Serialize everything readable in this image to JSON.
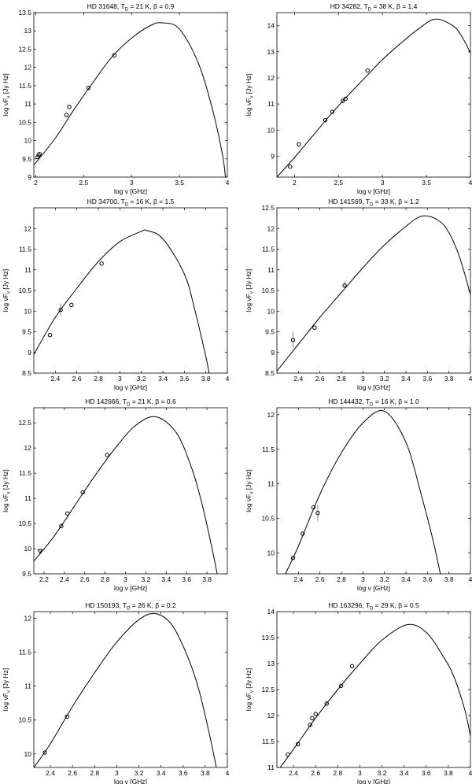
{
  "figure": {
    "chart_data": [
      {
        "type": "line",
        "title": "HD 31648, T_D = 21 K, β = 0.9",
        "title_parts": {
          "pre": "HD 31648, T",
          "sub": "D",
          "post": " = 21 K, β = 0.9"
        },
        "xlabel": "log ν [GHz]",
        "ylabel": {
          "pre": "log νF",
          "sub": "ν",
          "post": " [Jy Hz]"
        },
        "xlim": [
          1.98,
          4.0
        ],
        "ylim": [
          9.0,
          13.5
        ],
        "xticks": [
          2,
          2.5,
          3,
          3.5,
          4
        ],
        "yticks": [
          9,
          9.5,
          10,
          10.5,
          11,
          11.5,
          12,
          12.5,
          13,
          13.5
        ],
        "model": {
          "T_D": 21,
          "beta": 0.9,
          "peak_x": 3.32,
          "peak_y": 13.22
        },
        "series": [
          {
            "kind": "model",
            "x": [
              1.98,
              2.2,
              2.4,
              2.6,
              2.8,
              3.0,
              3.2,
              3.32,
              3.5,
              3.7,
              3.85,
              3.95,
              3.98
            ],
            "y": [
              9.33,
              10.05,
              10.85,
              11.6,
              12.3,
              12.8,
              13.15,
              13.22,
              13.05,
              12.1,
              10.8,
              9.6,
              9.0
            ]
          },
          {
            "kind": "data",
            "x": [
              2.02,
              2.03,
              2.04,
              2.32,
              2.35,
              2.55,
              2.82
            ],
            "y": [
              9.55,
              9.6,
              9.63,
              10.7,
              10.92,
              11.44,
              12.33
            ]
          }
        ]
      },
      {
        "type": "line",
        "title": "HD 34282, T_D = 38 K, β = 1.4",
        "title_parts": {
          "pre": "HD 34282, T",
          "sub": "D",
          "post": " = 38 K, β = 1.4"
        },
        "xlabel": "log ν [GHz]",
        "ylabel": {
          "pre": "log νF",
          "sub": "ν",
          "post": " [Jy Hz]"
        },
        "xlim": [
          1.8,
          4.0
        ],
        "ylim": [
          8.2,
          14.5
        ],
        "xticks": [
          2,
          2.5,
          3,
          3.5,
          4
        ],
        "yticks": [
          9,
          10,
          11,
          12,
          13,
          14
        ],
        "model": {
          "T_D": 38,
          "beta": 1.4,
          "peak_x": 3.6,
          "peak_y": 14.25
        },
        "series": [
          {
            "kind": "model",
            "x": [
              1.8,
              2.0,
              2.2,
              2.4,
              2.6,
              2.8,
              3.0,
              3.2,
              3.4,
              3.6,
              3.8,
              3.9,
              4.0
            ],
            "y": [
              8.2,
              8.95,
              9.75,
              10.55,
              11.3,
              12.0,
              12.7,
              13.3,
              13.85,
              14.25,
              14.0,
              13.6,
              12.95
            ]
          },
          {
            "kind": "data",
            "x": [
              1.95,
              2.05,
              2.35,
              2.43,
              2.55,
              2.58,
              2.83
            ],
            "y": [
              8.6,
              9.45,
              10.38,
              10.7,
              11.12,
              11.2,
              12.28
            ]
          }
        ]
      },
      {
        "type": "line",
        "title": "HD 34700, T_D = 16 K, β = 1.5",
        "title_parts": {
          "pre": "HD 34700, T",
          "sub": "D",
          "post": " = 16 K, β = 1.5"
        },
        "xlabel": "log ν [GHz]",
        "ylabel": {
          "pre": "log νF",
          "sub": "ν",
          "post": " [Jy Hz]"
        },
        "xlim": [
          2.2,
          4.0
        ],
        "ylim": [
          8.5,
          12.5
        ],
        "xticks": [
          2.4,
          2.6,
          2.8,
          3,
          3.2,
          3.4,
          3.6,
          3.8,
          4
        ],
        "yticks": [
          8.5,
          9,
          9.5,
          10,
          10.5,
          11,
          11.5,
          12
        ],
        "model": {
          "T_D": 16,
          "beta": 1.5,
          "peak_x": 3.25,
          "peak_y": 11.95
        },
        "series": [
          {
            "kind": "model",
            "x": [
              2.2,
              2.4,
              2.6,
              2.8,
              3.0,
              3.2,
              3.25,
              3.4,
              3.6,
              3.7,
              3.8,
              3.83
            ],
            "y": [
              8.95,
              9.85,
              10.55,
              11.2,
              11.68,
              11.93,
              11.95,
              11.75,
              10.9,
              10.0,
              8.9,
              8.5
            ]
          },
          {
            "kind": "data",
            "x": [
              2.35,
              2.45,
              2.55,
              2.83
            ],
            "y": [
              9.42,
              10.03,
              10.15,
              11.15
            ],
            "errors": [
              0,
              0.15,
              0,
              0
            ]
          }
        ]
      },
      {
        "type": "line",
        "title": "HD 141569, T_D = 33 K, β = 1.2",
        "title_parts": {
          "pre": "HD 141569, T",
          "sub": "D",
          "post": " = 33 K, β = 1.2"
        },
        "xlabel": "log ν [GHz]",
        "ylabel": {
          "pre": "log νF",
          "sub": "ν",
          "post": " [Jy Hz]"
        },
        "xlim": [
          2.2,
          4.0
        ],
        "ylim": [
          8.5,
          12.5
        ],
        "xticks": [
          2.4,
          2.6,
          2.8,
          3,
          3.2,
          3.4,
          3.6,
          3.8,
          4
        ],
        "yticks": [
          8.5,
          9,
          9.5,
          10,
          10.5,
          11,
          11.5,
          12,
          12.5
        ],
        "model": {
          "T_D": 33,
          "beta": 1.2,
          "peak_x": 3.55,
          "peak_y": 12.3
        },
        "series": [
          {
            "kind": "model",
            "x": [
              2.2,
              2.4,
              2.6,
              2.8,
              3.0,
              3.2,
              3.4,
              3.55,
              3.7,
              3.8,
              3.9,
              4.0
            ],
            "y": [
              8.55,
              9.2,
              9.85,
              10.45,
              11.05,
              11.6,
              12.05,
              12.3,
              12.2,
              11.9,
              11.3,
              10.4
            ]
          },
          {
            "kind": "data",
            "x": [
              2.35,
              2.55,
              2.83
            ],
            "y": [
              9.3,
              9.6,
              10.62
            ],
            "errors": [
              0.2,
              0,
              0.1
            ]
          }
        ]
      },
      {
        "type": "line",
        "title": "HD 142666, T_D = 21 K, β = 0.6",
        "title_parts": {
          "pre": "HD 142666, T",
          "sub": "D",
          "post": " = 21 K, β = 0.6"
        },
        "xlabel": "log ν [GHz]",
        "ylabel": {
          "pre": "log νF",
          "sub": "ν",
          "post": " [Jy Hz]"
        },
        "xlim": [
          2.1,
          4.0
        ],
        "ylim": [
          9.5,
          12.8
        ],
        "xticks": [
          2.2,
          2.4,
          2.6,
          2.8,
          3,
          3.2,
          3.4,
          3.6,
          3.8
        ],
        "yticks": [
          9.5,
          10,
          10.5,
          11,
          11.5,
          12,
          12.5
        ],
        "model": {
          "T_D": 21,
          "beta": 0.6,
          "peak_x": 3.3,
          "peak_y": 12.62
        },
        "series": [
          {
            "kind": "model",
            "x": [
              2.1,
              2.3,
              2.5,
              2.7,
              2.9,
              3.1,
              3.3,
              3.5,
              3.65,
              3.75,
              3.85,
              3.9
            ],
            "y": [
              9.75,
              10.25,
              10.85,
              11.45,
              12.0,
              12.45,
              12.62,
              12.3,
              11.6,
              10.9,
              10.0,
              9.5
            ]
          },
          {
            "kind": "data",
            "x": [
              2.37,
              2.43,
              2.58,
              2.82
            ],
            "y": [
              10.45,
              10.7,
              11.12,
              11.86
            ]
          },
          {
            "kind": "upper_limit",
            "x": [
              2.16
            ],
            "y": [
              9.95
            ]
          }
        ]
      },
      {
        "type": "line",
        "title": "HD 144432, T_D = 16 K, β = 1.0",
        "title_parts": {
          "pre": "HD 144432, T",
          "sub": "D",
          "post": " = 16 K, β = 1.0"
        },
        "xlabel": "log ν [GHz]",
        "ylabel": {
          "pre": "log νF",
          "sub": "ν",
          "post": " [Jy Hz]"
        },
        "xlim": [
          2.2,
          4.0
        ],
        "ylim": [
          9.7,
          12.1
        ],
        "xticks": [
          2.4,
          2.6,
          2.8,
          3,
          3.2,
          3.4,
          3.6,
          3.8,
          4
        ],
        "yticks": [
          10,
          10.5,
          11,
          11.5,
          12
        ],
        "model": {
          "T_D": 16,
          "beta": 1.0,
          "peak_x": 3.2,
          "peak_y": 12.05
        },
        "series": [
          {
            "kind": "model",
            "x": [
              2.28,
              2.4,
              2.6,
              2.8,
              3.0,
              3.2,
              3.4,
              3.55,
              3.65,
              3.72
            ],
            "y": [
              9.7,
              10.1,
              10.85,
              11.45,
              11.88,
              12.05,
              11.6,
              10.8,
              10.2,
              9.7
            ]
          },
          {
            "kind": "data",
            "x": [
              2.35,
              2.44,
              2.54,
              2.58
            ],
            "y": [
              9.93,
              10.28,
              10.66,
              10.58
            ],
            "errors": [
              0,
              0,
              0,
              0.12
            ]
          }
        ]
      },
      {
        "type": "line",
        "title": "HD 150193, T_D = 26 K, β = 0.2",
        "title_parts": {
          "pre": "HD 150193, T",
          "sub": "D",
          "post": " = 26 K, β = 0.2"
        },
        "xlabel": "log ν [GHz]",
        "ylabel": {
          "pre": "log νF",
          "sub": "ν",
          "post": " [Jy Hz]"
        },
        "xlim": [
          2.25,
          4.0
        ],
        "ylim": [
          9.8,
          12.1
        ],
        "xticks": [
          2.4,
          2.6,
          2.8,
          3,
          3.2,
          3.4,
          3.6,
          3.8,
          4
        ],
        "yticks": [
          10,
          10.5,
          11,
          11.5,
          12
        ],
        "model": {
          "T_D": 26,
          "beta": 0.2,
          "peak_x": 3.35,
          "peak_y": 12.07
        },
        "series": [
          {
            "kind": "model",
            "x": [
              2.25,
              2.4,
              2.6,
              2.8,
              3.0,
              3.2,
              3.35,
              3.5,
              3.65,
              3.75,
              3.85,
              3.9
            ],
            "y": [
              9.8,
              10.15,
              10.7,
              11.2,
              11.65,
              11.98,
              12.07,
              11.9,
              11.4,
              10.9,
              10.2,
              9.8
            ]
          },
          {
            "kind": "data",
            "x": [
              2.35,
              2.55
            ],
            "y": [
              10.02,
              10.55
            ]
          }
        ]
      },
      {
        "type": "line",
        "title": "HD 163296, T_D = 29 K, β = 0.5",
        "title_parts": {
          "pre": "HD 163296, T",
          "sub": "D",
          "post": " = 29 K, β = 0.5"
        },
        "xlabel": "log ν [GHz]",
        "ylabel": {
          "pre": "log νF",
          "sub": "ν",
          "post": " [Jy Hz]"
        },
        "xlim": [
          2.25,
          4.0
        ],
        "ylim": [
          11.0,
          14.0
        ],
        "xticks": [
          2.4,
          2.6,
          2.8,
          3,
          3.2,
          3.4,
          3.6,
          3.8,
          4
        ],
        "yticks": [
          11,
          11.5,
          12,
          12.5,
          13,
          13.5,
          14
        ],
        "model": {
          "T_D": 29,
          "beta": 0.5,
          "peak_x": 3.43,
          "peak_y": 13.75
        },
        "series": [
          {
            "kind": "model",
            "x": [
              2.28,
              2.4,
              2.6,
              2.8,
              3.0,
              3.2,
              3.43,
              3.6,
              3.75,
              3.85,
              3.95,
              4.0
            ],
            "y": [
              11.0,
              11.35,
              11.95,
              12.5,
              13.0,
              13.45,
              13.75,
              13.6,
              13.15,
              12.75,
              12.1,
              11.6
            ]
          },
          {
            "kind": "data",
            "x": [
              2.35,
              2.44,
              2.55,
              2.57,
              2.6,
              2.7,
              2.83,
              2.93
            ],
            "y": [
              11.25,
              11.45,
              11.82,
              11.95,
              12.03,
              12.23,
              12.57,
              12.95
            ]
          }
        ]
      }
    ]
  }
}
